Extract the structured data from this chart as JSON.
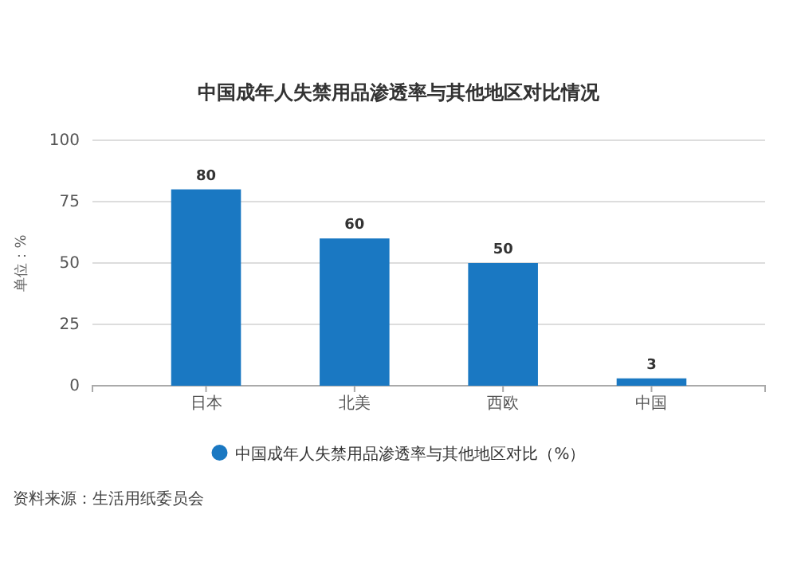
{
  "chart_data": {
    "type": "bar",
    "title": "中国成年人失禁用品渗透率与其他地区对比情况",
    "ylabel": "单位：%",
    "categories": [
      "日本",
      "北美",
      "西欧",
      "中国"
    ],
    "series": [
      {
        "name": "中国成年人失禁用品渗透率与其他地区对比（%）",
        "color": "#1a78c2",
        "values": [
          80,
          60,
          50,
          3
        ]
      }
    ],
    "ylim": [
      0,
      100
    ],
    "yticks": [
      0,
      25,
      50,
      75,
      100
    ],
    "grid": "y",
    "data_labels": true,
    "legend": "bottom",
    "annotations": [
      "资料来源：生活用纸委员会"
    ]
  }
}
